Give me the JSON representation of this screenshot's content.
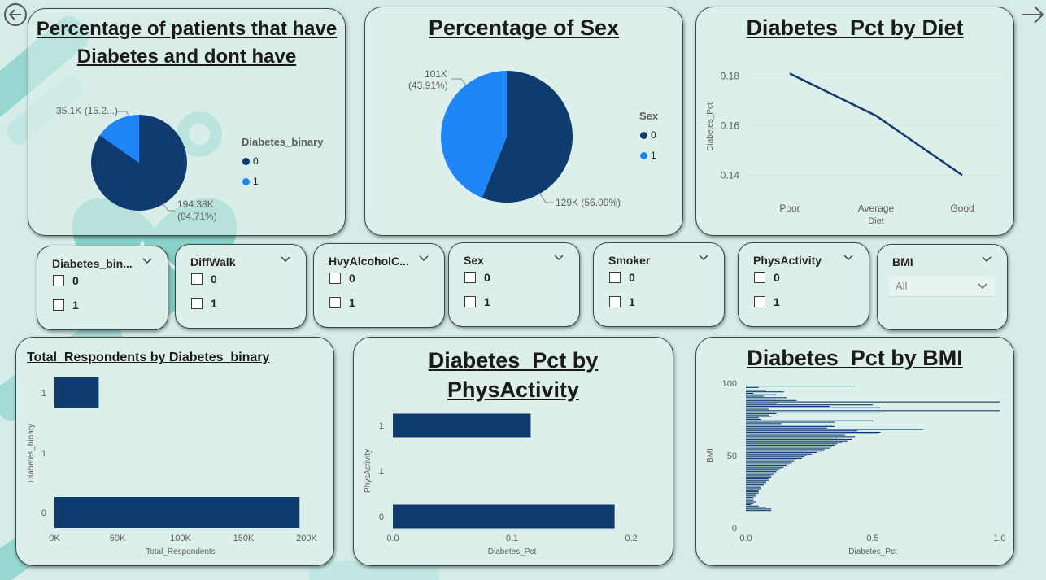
{
  "colors": {
    "dark": "#0f3b6e",
    "light": "#1f86f8",
    "background": "#d6ece8",
    "card": "#dcefea"
  },
  "nav": {
    "back_icon": "circle-arrow-left-icon",
    "forward_icon": "arrow-right-icon"
  },
  "pie_diabetes": {
    "title": "Percentage of patients that have Diabetes and dont have",
    "legend_title": "Diabetes_binary",
    "legend": [
      "0",
      "1"
    ],
    "label_0": "194.38K",
    "label_0_pct": "(84.71%)",
    "label_1": "35.1K (15.2...)",
    "chart_data": {
      "type": "pie",
      "categories": [
        "0",
        "1"
      ],
      "values": [
        194.38,
        35.1
      ],
      "percent": [
        84.71,
        15.29
      ]
    }
  },
  "pie_sex": {
    "title": "Percentage of Sex",
    "legend_title": "Sex",
    "legend": [
      "0",
      "1"
    ],
    "label_0": "129K (56.09%)",
    "label_1_a": "101K",
    "label_1_b": "(43.91%)",
    "chart_data": {
      "type": "pie",
      "categories": [
        "0",
        "1"
      ],
      "values": [
        129,
        101
      ],
      "percent": [
        56.09,
        43.91
      ]
    }
  },
  "line_diet": {
    "title": "Diabetes_Pct by Diet",
    "xlabel": "Diet",
    "ylabel": "Diabetes_Pct",
    "yticks": [
      "0.18",
      "0.16",
      "0.14"
    ],
    "chart_data": {
      "type": "line",
      "categories": [
        "Poor",
        "Average",
        "Good"
      ],
      "values": [
        0.181,
        0.164,
        0.14
      ],
      "ylim": [
        0.128,
        0.188
      ]
    }
  },
  "slicers": [
    {
      "title": "Diabetes_bin...",
      "options": [
        "0",
        "1"
      ]
    },
    {
      "title": "DiffWalk",
      "options": [
        "0",
        "1"
      ]
    },
    {
      "title": "HvyAlcoholC...",
      "options": [
        "0",
        "1"
      ]
    },
    {
      "title": "Sex",
      "options": [
        "0",
        "1"
      ]
    },
    {
      "title": "Smoker",
      "options": [
        "0",
        "1"
      ]
    },
    {
      "title": "PhysActivity",
      "options": [
        "0",
        "1"
      ]
    }
  ],
  "bmi_slicer": {
    "title": "BMI",
    "value": "All"
  },
  "bar_respondents": {
    "title": "Total_Respondents by Diabetes_binary",
    "xlabel": "Total_Respondents",
    "ylabel": "Diabetes_binary",
    "xticks": [
      "0K",
      "50K",
      "100K",
      "150K",
      "200K"
    ],
    "ytick_mid": "1",
    "chart_data": {
      "type": "bar",
      "categories": [
        "1",
        "0"
      ],
      "values": [
        35100,
        194380
      ],
      "xlim": [
        0,
        200000
      ]
    }
  },
  "bar_physactivity": {
    "title": "Diabetes_Pct by PhysActivity",
    "xlabel": "Diabetes_Pct",
    "ylabel": "PhysActivity",
    "xticks": [
      "0.0",
      "0.1",
      "0.2"
    ],
    "ytick_mid": "1",
    "chart_data": {
      "type": "bar",
      "categories": [
        "1",
        "0"
      ],
      "values": [
        0.133,
        0.214
      ],
      "xlim": [
        0,
        0.23
      ]
    }
  },
  "bar_bmi": {
    "title": "Diabetes_Pct by BMI",
    "xlabel": "Diabetes_Pct",
    "ylabel": "BMI",
    "xticks": [
      "0.0",
      "0.5",
      "1.0"
    ],
    "yticks": [
      "100",
      "50",
      "0"
    ],
    "chart_data": {
      "type": "bar",
      "x": [
        98,
        97,
        95,
        94,
        93,
        92,
        91,
        90,
        89,
        88,
        87,
        86,
        85,
        84,
        83,
        82,
        81,
        80,
        79,
        78,
        77,
        76,
        75,
        74,
        73,
        72,
        71,
        70,
        69,
        68,
        67,
        66,
        65,
        64,
        63,
        62,
        61,
        60,
        59,
        58,
        57,
        56,
        55,
        54,
        53,
        52,
        51,
        50,
        49,
        48,
        47,
        46,
        45,
        44,
        43,
        42,
        41,
        40,
        39,
        38,
        37,
        36,
        35,
        34,
        33,
        32,
        31,
        30,
        29,
        28,
        27,
        26,
        25,
        24,
        23,
        22,
        21,
        20,
        19,
        18,
        17,
        16,
        15,
        14,
        13,
        12
      ],
      "values": [
        0.43,
        0.05,
        0.08,
        0.15,
        0.03,
        0.12,
        0.07,
        0.16,
        0.12,
        0.2,
        1.0,
        0.12,
        0.5,
        0.33,
        0.53,
        0.09,
        1.0,
        0.53,
        0.12,
        0.09,
        0.1,
        0.05,
        0.06,
        0.5,
        0.35,
        0.14,
        0.34,
        0.35,
        0.32,
        0.7,
        0.44,
        0.53,
        0.52,
        0.39,
        0.43,
        0.36,
        0.42,
        0.4,
        0.38,
        0.36,
        0.35,
        0.34,
        0.33,
        0.31,
        0.3,
        0.28,
        0.26,
        0.24,
        0.23,
        0.22,
        0.2,
        0.19,
        0.18,
        0.17,
        0.16,
        0.15,
        0.14,
        0.13,
        0.12,
        0.12,
        0.11,
        0.1,
        0.1,
        0.09,
        0.09,
        0.08,
        0.08,
        0.07,
        0.07,
        0.06,
        0.06,
        0.05,
        0.05,
        0.05,
        0.04,
        0.04,
        0.03,
        0.03,
        0.03,
        0.04,
        0.03,
        0.02,
        0.05,
        0.08,
        0.1,
        0.1
      ],
      "ylim": [
        0,
        100
      ],
      "xlim": [
        0,
        1
      ]
    }
  }
}
